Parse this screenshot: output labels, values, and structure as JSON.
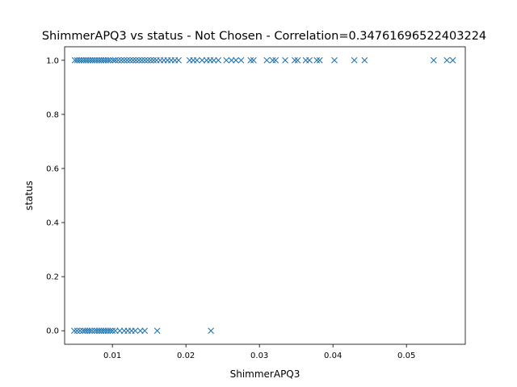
{
  "chart_data": {
    "type": "scatter",
    "title": "ShimmerAPQ3 vs status - Not Chosen - Correlation=0.34761696522403224",
    "xlabel": "ShimmerAPQ3",
    "ylabel": "status",
    "xlim": [
      0.0035,
      0.058
    ],
    "ylim": [
      -0.05,
      1.05
    ],
    "xticks": [
      0.01,
      0.02,
      0.03,
      0.04,
      0.05
    ],
    "xtick_labels": [
      "0.01",
      "0.02",
      "0.03",
      "0.04",
      "0.05"
    ],
    "yticks": [
      0.0,
      0.2,
      0.4,
      0.6,
      0.8,
      1.0
    ],
    "ytick_labels": [
      "0.0",
      "0.2",
      "0.4",
      "0.6",
      "0.8",
      "1.0"
    ],
    "grid": false,
    "marker": "x",
    "color": "#1f77b4",
    "series": [
      {
        "points": [
          [
            0.0049,
            1
          ],
          [
            0.0052,
            1
          ],
          [
            0.0055,
            1
          ],
          [
            0.0058,
            1
          ],
          [
            0.0061,
            1
          ],
          [
            0.0064,
            1
          ],
          [
            0.0067,
            1
          ],
          [
            0.007,
            1
          ],
          [
            0.0073,
            1
          ],
          [
            0.0076,
            1
          ],
          [
            0.0079,
            1
          ],
          [
            0.0082,
            1
          ],
          [
            0.0085,
            1
          ],
          [
            0.0088,
            1
          ],
          [
            0.0091,
            1
          ],
          [
            0.0094,
            1
          ],
          [
            0.0097,
            1
          ],
          [
            0.0101,
            1
          ],
          [
            0.0104,
            1
          ],
          [
            0.0108,
            1
          ],
          [
            0.0112,
            1
          ],
          [
            0.0116,
            1
          ],
          [
            0.012,
            1
          ],
          [
            0.0124,
            1
          ],
          [
            0.0128,
            1
          ],
          [
            0.0132,
            1
          ],
          [
            0.0136,
            1
          ],
          [
            0.014,
            1
          ],
          [
            0.0144,
            1
          ],
          [
            0.0148,
            1
          ],
          [
            0.0152,
            1
          ],
          [
            0.0156,
            1
          ],
          [
            0.016,
            1
          ],
          [
            0.0165,
            1
          ],
          [
            0.017,
            1
          ],
          [
            0.0175,
            1
          ],
          [
            0.018,
            1
          ],
          [
            0.0185,
            1
          ],
          [
            0.019,
            1
          ],
          [
            0.0205,
            1
          ],
          [
            0.021,
            1
          ],
          [
            0.0215,
            1
          ],
          [
            0.0222,
            1
          ],
          [
            0.0228,
            1
          ],
          [
            0.0233,
            1
          ],
          [
            0.0238,
            1
          ],
          [
            0.0244,
            1
          ],
          [
            0.0255,
            1
          ],
          [
            0.0262,
            1
          ],
          [
            0.0268,
            1
          ],
          [
            0.0275,
            1
          ],
          [
            0.0288,
            1
          ],
          [
            0.0292,
            1
          ],
          [
            0.031,
            1
          ],
          [
            0.0318,
            1
          ],
          [
            0.0322,
            1
          ],
          [
            0.0335,
            1
          ],
          [
            0.0348,
            1
          ],
          [
            0.0352,
            1
          ],
          [
            0.0363,
            1
          ],
          [
            0.0368,
            1
          ],
          [
            0.0378,
            1
          ],
          [
            0.0382,
            1
          ],
          [
            0.0402,
            1
          ],
          [
            0.0429,
            1
          ],
          [
            0.0443,
            1
          ],
          [
            0.0537,
            1
          ],
          [
            0.0555,
            1
          ],
          [
            0.0563,
            1
          ],
          [
            0.0048,
            0
          ],
          [
            0.0052,
            0
          ],
          [
            0.0056,
            0
          ],
          [
            0.006,
            0
          ],
          [
            0.0063,
            0
          ],
          [
            0.0066,
            0
          ],
          [
            0.0069,
            0
          ],
          [
            0.0072,
            0
          ],
          [
            0.0076,
            0
          ],
          [
            0.0079,
            0
          ],
          [
            0.0082,
            0
          ],
          [
            0.0085,
            0
          ],
          [
            0.0088,
            0
          ],
          [
            0.0091,
            0
          ],
          [
            0.0094,
            0
          ],
          [
            0.0097,
            0
          ],
          [
            0.01,
            0
          ],
          [
            0.0104,
            0
          ],
          [
            0.011,
            0
          ],
          [
            0.0116,
            0
          ],
          [
            0.0121,
            0
          ],
          [
            0.0126,
            0
          ],
          [
            0.0131,
            0
          ],
          [
            0.0138,
            0
          ],
          [
            0.0144,
            0
          ],
          [
            0.0161,
            0
          ],
          [
            0.0234,
            0
          ]
        ]
      }
    ]
  }
}
